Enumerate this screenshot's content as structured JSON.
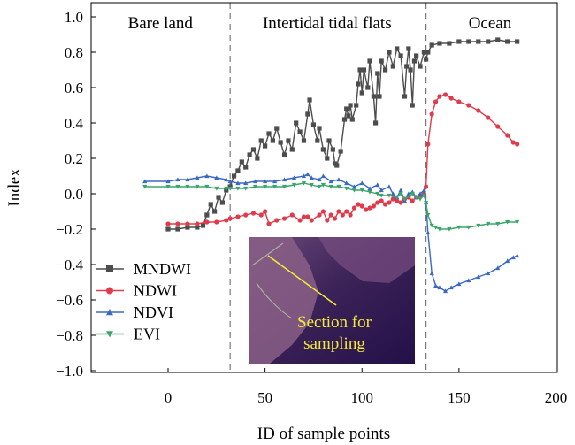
{
  "chart_data": {
    "type": "line",
    "xlabel": "ID of sample points",
    "ylabel": "Index",
    "xlim": [
      -40,
      200
    ],
    "ylim": [
      -1.0,
      1.05
    ],
    "xticks": [
      0,
      50,
      100,
      150,
      200
    ],
    "yticks": [
      -1.0,
      -0.8,
      -0.6,
      -0.4,
      -0.2,
      0.0,
      0.2,
      0.4,
      0.6,
      0.8,
      1.0
    ],
    "xtick_labels": [
      "0",
      "50",
      "100",
      "150",
      "200"
    ],
    "ytick_labels": [
      "−1.0",
      "−0.8",
      "−0.6",
      "−0.4",
      "−0.2",
      "0.0",
      "0.2",
      "0.4",
      "0.6",
      "0.8",
      "1.0"
    ],
    "grid": false,
    "legend": "bottom-left",
    "boundaries": [
      32,
      133
    ],
    "regions": [
      {
        "label": "Bare land",
        "x": -4
      },
      {
        "label": "Intertidal tidal flats",
        "x": 82
      },
      {
        "label": "Ocean",
        "x": 166
      }
    ],
    "inset": {
      "caption_line1": "Section for",
      "caption_line2": "sampling"
    },
    "series": [
      {
        "name": "MNDWI",
        "color": "#4d4d4d",
        "marker": "square",
        "points": [
          [
            0,
            -0.2
          ],
          [
            5,
            -0.2
          ],
          [
            10,
            -0.19
          ],
          [
            15,
            -0.19
          ],
          [
            18,
            -0.18
          ],
          [
            20,
            -0.12
          ],
          [
            22,
            -0.06
          ],
          [
            24,
            -0.1
          ],
          [
            26,
            -0.02
          ],
          [
            28,
            -0.05
          ],
          [
            30,
            0.02
          ],
          [
            32,
            0.04
          ],
          [
            34,
            0.1
          ],
          [
            36,
            0.13
          ],
          [
            38,
            0.18
          ],
          [
            40,
            0.15
          ],
          [
            42,
            0.22
          ],
          [
            44,
            0.25
          ],
          [
            46,
            0.2
          ],
          [
            48,
            0.3
          ],
          [
            50,
            0.27
          ],
          [
            52,
            0.34
          ],
          [
            54,
            0.3
          ],
          [
            56,
            0.37
          ],
          [
            58,
            0.29
          ],
          [
            60,
            0.22
          ],
          [
            62,
            0.3
          ],
          [
            64,
            0.25
          ],
          [
            66,
            0.4
          ],
          [
            68,
            0.35
          ],
          [
            70,
            0.3
          ],
          [
            72,
            0.45
          ],
          [
            73,
            0.53
          ],
          [
            75,
            0.39
          ],
          [
            77,
            0.3
          ],
          [
            78,
            0.37
          ],
          [
            80,
            0.25
          ],
          [
            82,
            0.2
          ],
          [
            83,
            0.3
          ],
          [
            85,
            0.25
          ],
          [
            86,
            0.17
          ],
          [
            87,
            0.16
          ],
          [
            89,
            0.24
          ],
          [
            91,
            0.42
          ],
          [
            92,
            0.48
          ],
          [
            93,
            0.44
          ],
          [
            94,
            0.5
          ],
          [
            95,
            0.42
          ],
          [
            97,
            0.5
          ],
          [
            98,
            0.62
          ],
          [
            99,
            0.7
          ],
          [
            100,
            0.57
          ],
          [
            101,
            0.7
          ],
          [
            103,
            0.6
          ],
          [
            104,
            0.75
          ],
          [
            106,
            0.55
          ],
          [
            107,
            0.4
          ],
          [
            108,
            0.68
          ],
          [
            109,
            0.55
          ],
          [
            110,
            0.75
          ],
          [
            112,
            0.7
          ],
          [
            114,
            0.8
          ],
          [
            116,
            0.72
          ],
          [
            118,
            0.82
          ],
          [
            120,
            0.78
          ],
          [
            122,
            0.55
          ],
          [
            123,
            0.72
          ],
          [
            124,
            0.82
          ],
          [
            125,
            0.7
          ],
          [
            126,
            0.5
          ],
          [
            127,
            0.75
          ],
          [
            128,
            0.78
          ],
          [
            130,
            0.72
          ],
          [
            132,
            0.8
          ],
          [
            133,
            0.76
          ],
          [
            134,
            0.8
          ],
          [
            136,
            0.84
          ],
          [
            140,
            0.85
          ],
          [
            145,
            0.85
          ],
          [
            150,
            0.86
          ],
          [
            155,
            0.86
          ],
          [
            160,
            0.86
          ],
          [
            165,
            0.86
          ],
          [
            170,
            0.87
          ],
          [
            175,
            0.86
          ],
          [
            180,
            0.86
          ]
        ]
      },
      {
        "name": "NDWI",
        "color": "#e03a4b",
        "marker": "circle",
        "points": [
          [
            0,
            -0.17
          ],
          [
            5,
            -0.17
          ],
          [
            10,
            -0.17
          ],
          [
            15,
            -0.17
          ],
          [
            20,
            -0.16
          ],
          [
            25,
            -0.16
          ],
          [
            30,
            -0.15
          ],
          [
            32,
            -0.14
          ],
          [
            36,
            -0.13
          ],
          [
            40,
            -0.12
          ],
          [
            44,
            -0.11
          ],
          [
            48,
            -0.12
          ],
          [
            50,
            -0.1
          ],
          [
            52,
            -0.17
          ],
          [
            56,
            -0.15
          ],
          [
            60,
            -0.14
          ],
          [
            64,
            -0.12
          ],
          [
            68,
            -0.15
          ],
          [
            70,
            -0.13
          ],
          [
            72,
            -0.13
          ],
          [
            74,
            -0.15
          ],
          [
            78,
            -0.12
          ],
          [
            80,
            -0.1
          ],
          [
            82,
            -0.15
          ],
          [
            84,
            -0.12
          ],
          [
            86,
            -0.14
          ],
          [
            88,
            -0.1
          ],
          [
            90,
            -0.12
          ],
          [
            92,
            -0.1
          ],
          [
            94,
            -0.12
          ],
          [
            96,
            -0.08
          ],
          [
            98,
            -0.06
          ],
          [
            100,
            -0.07
          ],
          [
            102,
            -0.09
          ],
          [
            104,
            -0.08
          ],
          [
            106,
            -0.07
          ],
          [
            108,
            -0.05
          ],
          [
            110,
            -0.04
          ],
          [
            112,
            -0.06
          ],
          [
            114,
            -0.05
          ],
          [
            116,
            -0.03
          ],
          [
            118,
            -0.04
          ],
          [
            120,
            -0.05
          ],
          [
            122,
            -0.03
          ],
          [
            124,
            -0.02
          ],
          [
            126,
            -0.04
          ],
          [
            128,
            -0.02
          ],
          [
            130,
            -0.01
          ],
          [
            132,
            0.0
          ],
          [
            133,
            0.04
          ],
          [
            134,
            0.28
          ],
          [
            136,
            0.45
          ],
          [
            138,
            0.52
          ],
          [
            140,
            0.55
          ],
          [
            143,
            0.56
          ],
          [
            146,
            0.54
          ],
          [
            150,
            0.52
          ],
          [
            155,
            0.5
          ],
          [
            160,
            0.47
          ],
          [
            165,
            0.43
          ],
          [
            170,
            0.38
          ],
          [
            175,
            0.33
          ],
          [
            178,
            0.29
          ],
          [
            180,
            0.28
          ]
        ]
      },
      {
        "name": "NDVI",
        "color": "#3b68c0",
        "marker": "triangle",
        "points": [
          [
            -12,
            0.07
          ],
          [
            0,
            0.07
          ],
          [
            5,
            0.08
          ],
          [
            10,
            0.08
          ],
          [
            15,
            0.09
          ],
          [
            20,
            0.1
          ],
          [
            25,
            0.09
          ],
          [
            30,
            0.08
          ],
          [
            32,
            0.07
          ],
          [
            36,
            0.06
          ],
          [
            40,
            0.06
          ],
          [
            45,
            0.07
          ],
          [
            50,
            0.07
          ],
          [
            55,
            0.07
          ],
          [
            60,
            0.08
          ],
          [
            65,
            0.09
          ],
          [
            70,
            0.1
          ],
          [
            72,
            0.11
          ],
          [
            74,
            0.09
          ],
          [
            78,
            0.08
          ],
          [
            80,
            0.1
          ],
          [
            84,
            0.07
          ],
          [
            88,
            0.08
          ],
          [
            92,
            0.06
          ],
          [
            96,
            0.04
          ],
          [
            100,
            0.06
          ],
          [
            104,
            0.03
          ],
          [
            108,
            0.05
          ],
          [
            110,
            0.02
          ],
          [
            114,
            0.04
          ],
          [
            116,
            0.0
          ],
          [
            118,
            -0.02
          ],
          [
            120,
            0.02
          ],
          [
            122,
            -0.04
          ],
          [
            124,
            0.0
          ],
          [
            126,
            0.01
          ],
          [
            128,
            -0.02
          ],
          [
            130,
            0.0
          ],
          [
            132,
            0.02
          ],
          [
            133,
            -0.05
          ],
          [
            134,
            -0.22
          ],
          [
            136,
            -0.45
          ],
          [
            138,
            -0.52
          ],
          [
            140,
            -0.53
          ],
          [
            143,
            -0.55
          ],
          [
            146,
            -0.53
          ],
          [
            150,
            -0.51
          ],
          [
            155,
            -0.49
          ],
          [
            160,
            -0.47
          ],
          [
            165,
            -0.45
          ],
          [
            170,
            -0.42
          ],
          [
            175,
            -0.38
          ],
          [
            178,
            -0.36
          ],
          [
            180,
            -0.35
          ]
        ]
      },
      {
        "name": "EVI",
        "color": "#3aa56a",
        "marker": "triangle-down",
        "points": [
          [
            -12,
            0.04
          ],
          [
            0,
            0.04
          ],
          [
            5,
            0.04
          ],
          [
            10,
            0.04
          ],
          [
            15,
            0.04
          ],
          [
            20,
            0.04
          ],
          [
            25,
            0.03
          ],
          [
            30,
            0.03
          ],
          [
            32,
            0.03
          ],
          [
            36,
            0.03
          ],
          [
            40,
            0.03
          ],
          [
            45,
            0.04
          ],
          [
            50,
            0.04
          ],
          [
            55,
            0.04
          ],
          [
            60,
            0.04
          ],
          [
            65,
            0.05
          ],
          [
            70,
            0.06
          ],
          [
            74,
            0.05
          ],
          [
            78,
            0.04
          ],
          [
            80,
            0.05
          ],
          [
            84,
            0.04
          ],
          [
            88,
            0.04
          ],
          [
            92,
            0.03
          ],
          [
            96,
            0.02
          ],
          [
            100,
            0.02
          ],
          [
            104,
            0.01
          ],
          [
            108,
            0.0
          ],
          [
            110,
            -0.01
          ],
          [
            114,
            -0.01
          ],
          [
            118,
            -0.02
          ],
          [
            120,
            0.0
          ],
          [
            122,
            -0.03
          ],
          [
            126,
            0.0
          ],
          [
            128,
            -0.02
          ],
          [
            130,
            -0.03
          ],
          [
            132,
            -0.01
          ],
          [
            133,
            -0.05
          ],
          [
            134,
            -0.12
          ],
          [
            136,
            -0.18
          ],
          [
            138,
            -0.19
          ],
          [
            140,
            -0.2
          ],
          [
            145,
            -0.2
          ],
          [
            150,
            -0.19
          ],
          [
            155,
            -0.19
          ],
          [
            160,
            -0.18
          ],
          [
            165,
            -0.17
          ],
          [
            170,
            -0.17
          ],
          [
            175,
            -0.16
          ],
          [
            180,
            -0.16
          ]
        ]
      }
    ]
  }
}
